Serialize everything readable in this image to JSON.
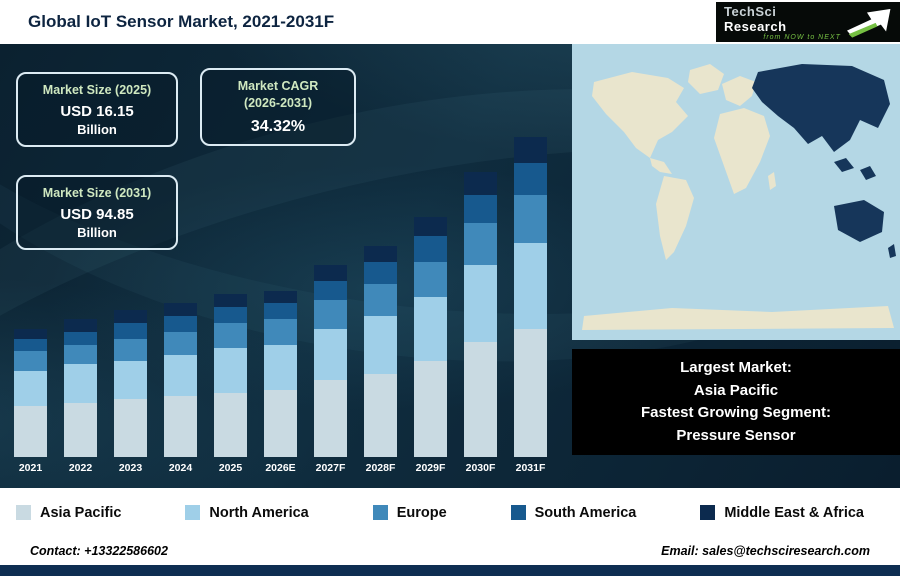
{
  "header": {
    "title": "Global IoT Sensor Market, 2021-2031F",
    "logo": {
      "brand_tech": "TechSci",
      "brand_research": " Research",
      "tagline": "from NOW to NEXT"
    }
  },
  "stats": {
    "market_size_2025": {
      "label": "Market Size (2025)",
      "value": "USD 16.15",
      "unit": "Billion"
    },
    "market_cagr": {
      "label_line1": "Market CAGR",
      "label_line2": "(2026-2031)",
      "value": "34.32%"
    },
    "market_size_2031": {
      "label": "Market Size (2031)",
      "value": "USD 94.85",
      "unit": "Billion"
    }
  },
  "chart_data": {
    "type": "bar",
    "stacked": true,
    "title": "Global IoT Sensor Market, 2021-2031F",
    "xlabel": "",
    "ylabel": "",
    "categories": [
      "2021",
      "2022",
      "2023",
      "2024",
      "2025",
      "2026E",
      "2027F",
      "2028F",
      "2029F",
      "2030F",
      "2031F"
    ],
    "series": [
      {
        "name": "Asia Pacific",
        "color": "#c9dae2",
        "values": [
          16,
          17,
          18,
          19,
          20,
          21,
          24,
          26,
          30,
          36,
          40
        ]
      },
      {
        "name": "North America",
        "color": "#9fcfe8",
        "values": [
          11,
          12,
          12,
          13,
          14,
          14,
          16,
          18,
          20,
          24,
          27
        ]
      },
      {
        "name": "Europe",
        "color": "#4089ba",
        "values": [
          6,
          6,
          7,
          7,
          8,
          8,
          9,
          10,
          11,
          13,
          15
        ]
      },
      {
        "name": "South America",
        "color": "#17598e",
        "values": [
          4,
          4,
          5,
          5,
          5,
          5,
          6,
          7,
          8,
          9,
          10
        ]
      },
      {
        "name": "Middle East & Africa",
        "color": "#0c2a4e",
        "values": [
          3,
          4,
          4,
          4,
          4,
          4,
          5,
          5,
          6,
          7,
          8
        ]
      }
    ],
    "ylim": [
      0,
      105
    ],
    "grid": false,
    "legend_position": "bottom",
    "note": "Relative stacked heights estimated from pixels; no y-axis shown. Known anchors: 2025 total = USD 16.15B, 2031 total = USD 94.85B."
  },
  "highlight": {
    "lines": [
      "Largest Market:",
      "Asia Pacific",
      "Fastest Growing Segment:",
      "Pressure Sensor"
    ]
  },
  "legend": [
    {
      "label": "Asia Pacific",
      "color": "#c9dae2"
    },
    {
      "label": "North America",
      "color": "#9fcfe8"
    },
    {
      "label": "Europe",
      "color": "#4089ba"
    },
    {
      "label": "South America",
      "color": "#17598e"
    },
    {
      "label": "Middle East & Africa",
      "color": "#0c2a4e"
    }
  ],
  "footer": {
    "contact": "Contact: +13322586602",
    "email": "Email: sales@techsciresearch.com"
  }
}
